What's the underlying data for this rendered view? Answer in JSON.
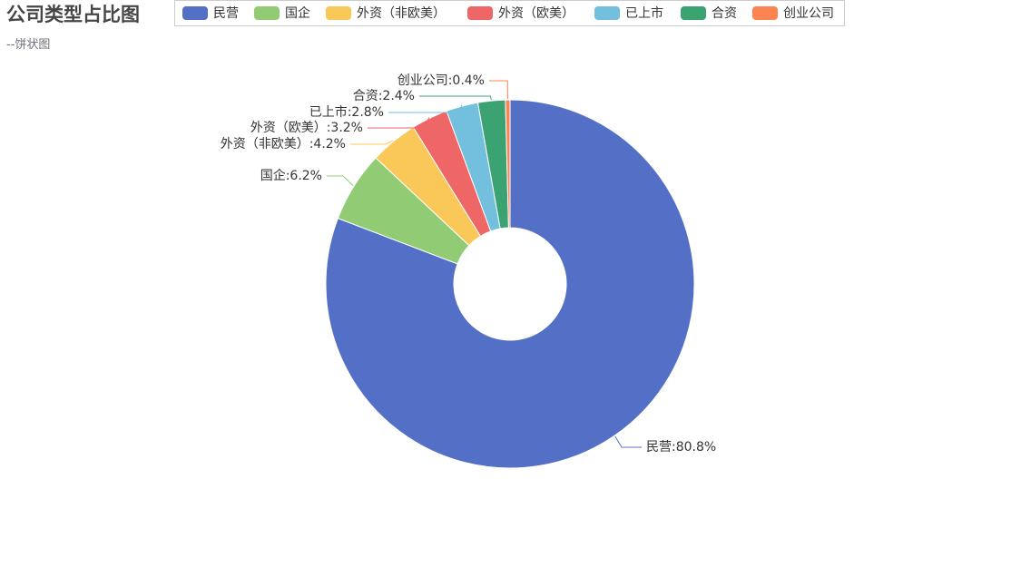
{
  "title": "公司类型占比图",
  "subtitle": "--饼状图",
  "chart_data": {
    "type": "pie",
    "title": "公司类型占比图",
    "subtitle": "--饼状图",
    "legend_position": "top",
    "donut": true,
    "label_format": "{name}:{percent}%",
    "slices": [
      {
        "name": "民营",
        "value": 80.8,
        "color": "#5470c6"
      },
      {
        "name": "国企",
        "value": 6.2,
        "color": "#91cc75"
      },
      {
        "name": "外资（非欧美）",
        "value": 4.2,
        "color": "#fac858"
      },
      {
        "name": "外资（欧美）",
        "value": 3.2,
        "color": "#ee6666"
      },
      {
        "name": "已上市",
        "value": 2.8,
        "color": "#73c0de"
      },
      {
        "name": "合资",
        "value": 2.4,
        "color": "#3ba272"
      },
      {
        "name": "创业公司",
        "value": 0.4,
        "color": "#fc8452"
      }
    ]
  }
}
